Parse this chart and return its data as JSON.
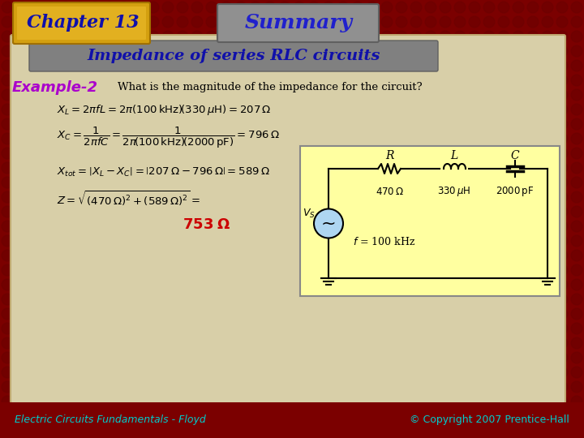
{
  "chapter_text": "Chapter 13",
  "summary_text": "Summary",
  "subtitle_text": "Impedance of series RLC circuits",
  "example_text": "Example-2",
  "question_text": "What is the magnitude of the impedance for the circuit?",
  "footer_left": "Electric Circuits Fundamentals - Floyd",
  "footer_right": "© Copyright 2007 Prentice-Hall",
  "bg_dark_red": "#7B0000",
  "bg_content": "#D8CFA8",
  "chapter_bg_top": "#C8960A",
  "chapter_bg_bot": "#E8B820",
  "summary_bg": "#909090",
  "subtitle_bg": "#808080",
  "circuit_bg": "#FFFFA0",
  "chapter_color": "#1010AA",
  "summary_color": "#2020CC",
  "subtitle_color": "#1010AA",
  "example_color": "#AA00CC",
  "result_color": "#CC0000",
  "footer_color": "#00CCCC",
  "eq_color": "#000000",
  "wire_color": "#000000"
}
